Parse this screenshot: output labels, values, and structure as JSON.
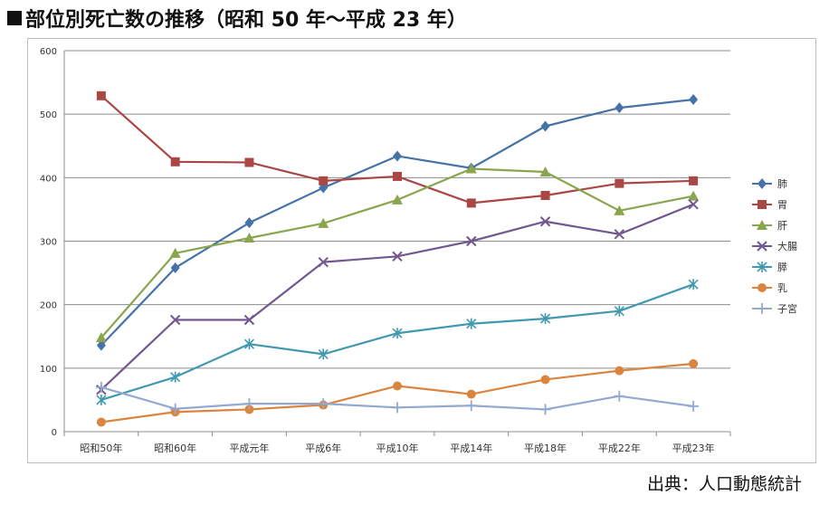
{
  "heading": {
    "marker": "■",
    "title": "部位別死亡数の推移（昭和 50 年～平成 23 年）"
  },
  "source": "出典：人口動態統計",
  "chart_data": {
    "type": "line",
    "categories": [
      "昭和50年",
      "昭和60年",
      "平成元年",
      "平成6年",
      "平成10年",
      "平成14年",
      "平成18年",
      "平成22年",
      "平成23年"
    ],
    "ylim": [
      0,
      600
    ],
    "yticks": [
      0,
      100,
      200,
      300,
      400,
      500,
      600
    ],
    "grid": true,
    "legend_position": "right",
    "series": [
      {
        "name": "肺",
        "color": "#4572A7",
        "marker": "diamond",
        "values": [
          136,
          258,
          329,
          384,
          434,
          415,
          481,
          510,
          523
        ]
      },
      {
        "name": "胃",
        "color": "#AA4643",
        "marker": "square",
        "values": [
          529,
          425,
          424,
          395,
          402,
          360,
          372,
          391,
          395
        ]
      },
      {
        "name": "肝",
        "color": "#89A54E",
        "marker": "triangle",
        "values": [
          148,
          281,
          305,
          328,
          365,
          414,
          409,
          348,
          371
        ]
      },
      {
        "name": "大腸",
        "color": "#71588F",
        "marker": "x",
        "values": [
          66,
          176,
          176,
          267,
          276,
          300,
          331,
          311,
          358
        ]
      },
      {
        "name": "膵",
        "color": "#4198AF",
        "marker": "star",
        "values": [
          50,
          86,
          138,
          122,
          155,
          170,
          178,
          190,
          232
        ]
      },
      {
        "name": "乳",
        "color": "#DB843D",
        "marker": "circle",
        "values": [
          15,
          31,
          35,
          42,
          72,
          59,
          82,
          96,
          107
        ]
      },
      {
        "name": "子宮",
        "color": "#93A9CF",
        "marker": "plus",
        "values": [
          70,
          36,
          44,
          44,
          38,
          41,
          35,
          56,
          40
        ]
      }
    ]
  }
}
